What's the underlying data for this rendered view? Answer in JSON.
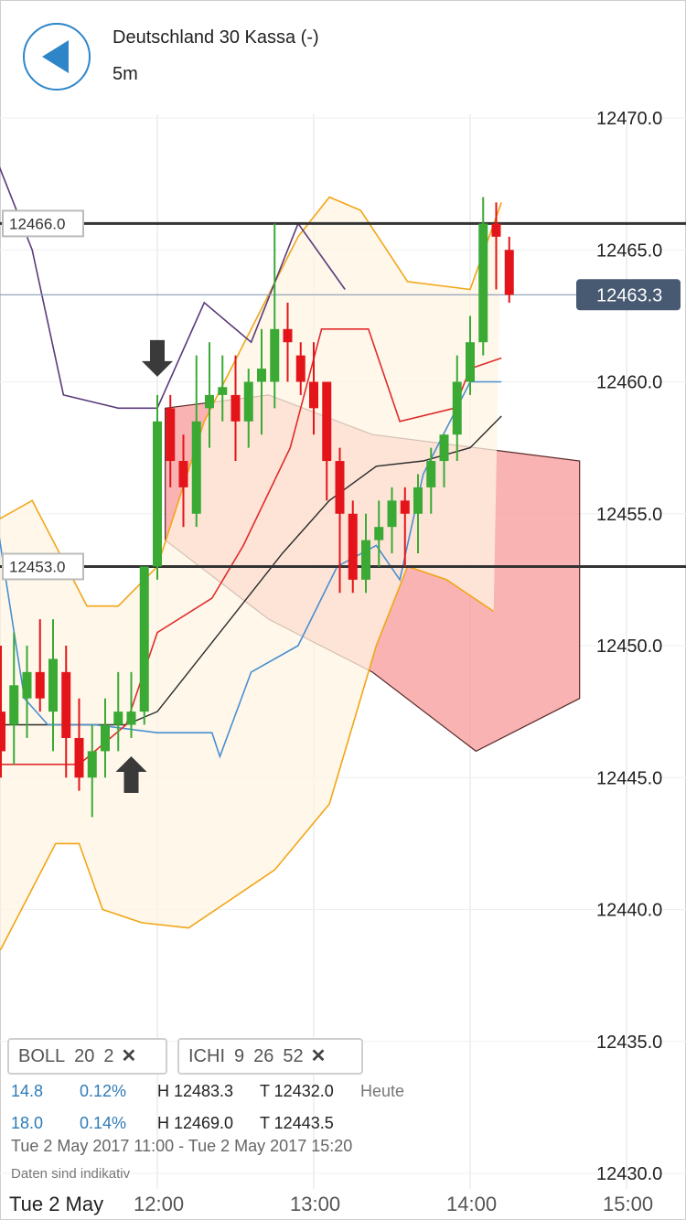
{
  "header": {
    "title": "Deutschland 30 Kassa (-)",
    "timeframe": "5m",
    "back_icon": "back-arrow-icon"
  },
  "colors": {
    "up_candle": "#3aaa35",
    "down_candle": "#e3151a",
    "boll_band": "#f2a516",
    "cloud_bear": "#f79a9a",
    "ichimoku_tenkan": "#4a8fd0",
    "ichimoku_kijun": "#e02b2b",
    "chikou": "#5a3a7a",
    "accent": "#2e86c9",
    "price_tag": "#475a72"
  },
  "chart_data": {
    "type": "candlestick",
    "title": "",
    "xlabel": "",
    "ylabel": "",
    "ylim": [
      12429.5,
      12470.5
    ],
    "y_ticks": [
      "12430.0",
      "12435.0",
      "12440.0",
      "12445.0",
      "12450.0",
      "12455.0",
      "12460.0",
      "12465.0",
      "12470.0"
    ],
    "x_ticks": [
      {
        "label": "Tue 2 May",
        "time": "11:20"
      },
      {
        "label": "12:00",
        "time": "12:00"
      },
      {
        "label": "13:00",
        "time": "13:00"
      },
      {
        "label": "14:00",
        "time": "14:00"
      },
      {
        "label": "15:00",
        "time": "15:00"
      }
    ],
    "x_range": [
      "11:00",
      "15:20"
    ],
    "horizontal_levels": [
      {
        "label": "12466.0",
        "value": 12466.0
      },
      {
        "label": "12453.0",
        "value": 12453.0
      }
    ],
    "last_price": {
      "label": "12463.3",
      "value": 12463.3
    },
    "candles": [
      {
        "time": "11:00",
        "o": 12447.5,
        "h": 12450.0,
        "l": 12445.0,
        "c": 12446.0
      },
      {
        "time": "11:05",
        "o": 12447.0,
        "h": 12450.5,
        "l": 12445.5,
        "c": 12448.5
      },
      {
        "time": "11:10",
        "o": 12448.0,
        "h": 12450.0,
        "l": 12446.5,
        "c": 12449.0
      },
      {
        "time": "11:15",
        "o": 12449.0,
        "h": 12451.0,
        "l": 12447.5,
        "c": 12448.0
      },
      {
        "time": "11:20",
        "o": 12447.5,
        "h": 12451.0,
        "l": 12446.0,
        "c": 12449.5
      },
      {
        "time": "11:25",
        "o": 12449.0,
        "h": 12450.0,
        "l": 12445.0,
        "c": 12446.5
      },
      {
        "time": "11:30",
        "o": 12446.5,
        "h": 12448.0,
        "l": 12444.5,
        "c": 12445.0
      },
      {
        "time": "11:35",
        "o": 12445.0,
        "h": 12447.0,
        "l": 12443.5,
        "c": 12446.0
      },
      {
        "time": "11:40",
        "o": 12446.0,
        "h": 12448.0,
        "l": 12445.0,
        "c": 12447.0
      },
      {
        "time": "11:45",
        "o": 12447.0,
        "h": 12449.0,
        "l": 12446.0,
        "c": 12447.5
      },
      {
        "time": "11:50",
        "o": 12447.0,
        "h": 12449.0,
        "l": 12446.5,
        "c": 12447.5
      },
      {
        "time": "11:55",
        "o": 12447.5,
        "h": 12453.0,
        "l": 12447.0,
        "c": 12453.0
      },
      {
        "time": "12:00",
        "o": 12453.0,
        "h": 12459.5,
        "l": 12452.5,
        "c": 12458.5
      },
      {
        "time": "12:05",
        "o": 12459.0,
        "h": 12459.5,
        "l": 12456.0,
        "c": 12457.0
      },
      {
        "time": "12:10",
        "o": 12457.0,
        "h": 12458.0,
        "l": 12454.5,
        "c": 12456.0
      },
      {
        "time": "12:15",
        "o": 12455.0,
        "h": 12461.0,
        "l": 12454.5,
        "c": 12458.5
      },
      {
        "time": "12:20",
        "o": 12459.0,
        "h": 12461.5,
        "l": 12457.5,
        "c": 12459.5
      },
      {
        "time": "12:25",
        "o": 12459.5,
        "h": 12461.0,
        "l": 12458.5,
        "c": 12459.8
      },
      {
        "time": "12:30",
        "o": 12459.5,
        "h": 12461.0,
        "l": 12457.0,
        "c": 12458.5
      },
      {
        "time": "12:35",
        "o": 12458.5,
        "h": 12460.5,
        "l": 12457.5,
        "c": 12460.0
      },
      {
        "time": "12:40",
        "o": 12460.0,
        "h": 12462.0,
        "l": 12458.0,
        "c": 12460.5
      },
      {
        "time": "12:45",
        "o": 12460.0,
        "h": 12466.0,
        "l": 12459.0,
        "c": 12462.0
      },
      {
        "time": "12:50",
        "o": 12462.0,
        "h": 12463.0,
        "l": 12460.0,
        "c": 12461.5
      },
      {
        "time": "12:55",
        "o": 12461.0,
        "h": 12461.5,
        "l": 12459.5,
        "c": 12460.0
      },
      {
        "time": "13:00",
        "o": 12460.0,
        "h": 12461.5,
        "l": 12458.0,
        "c": 12459.0
      },
      {
        "time": "13:05",
        "o": 12460.0,
        "h": 12460.0,
        "l": 12455.5,
        "c": 12457.0
      },
      {
        "time": "13:10",
        "o": 12457.0,
        "h": 12457.5,
        "l": 12452.0,
        "c": 12455.0
      },
      {
        "time": "13:15",
        "o": 12455.0,
        "h": 12455.5,
        "l": 12452.0,
        "c": 12452.5
      },
      {
        "time": "13:20",
        "o": 12452.5,
        "h": 12455.0,
        "l": 12452.0,
        "c": 12454.0
      },
      {
        "time": "13:25",
        "o": 12454.0,
        "h": 12455.5,
        "l": 12453.0,
        "c": 12454.5
      },
      {
        "time": "13:30",
        "o": 12454.5,
        "h": 12456.0,
        "l": 12453.5,
        "c": 12455.5
      },
      {
        "time": "13:35",
        "o": 12455.5,
        "h": 12456.0,
        "l": 12453.0,
        "c": 12455.0
      },
      {
        "time": "13:40",
        "o": 12455.0,
        "h": 12456.5,
        "l": 12453.5,
        "c": 12456.0
      },
      {
        "time": "13:45",
        "o": 12456.0,
        "h": 12457.5,
        "l": 12455.0,
        "c": 12457.0
      },
      {
        "time": "13:50",
        "o": 12457.0,
        "h": 12458.0,
        "l": 12456.0,
        "c": 12458.0
      },
      {
        "time": "13:55",
        "o": 12458.0,
        "h": 12461.0,
        "l": 12457.0,
        "c": 12460.0
      },
      {
        "time": "14:00",
        "o": 12460.0,
        "h": 12462.5,
        "l": 12459.5,
        "c": 12461.5
      },
      {
        "time": "14:05",
        "o": 12461.5,
        "h": 12467.0,
        "l": 12461.0,
        "c": 12466.0
      },
      {
        "time": "14:10",
        "o": 12466.0,
        "h": 12466.8,
        "l": 12463.5,
        "c": 12465.5
      },
      {
        "time": "14:15",
        "o": 12465.0,
        "h": 12465.5,
        "l": 12463.0,
        "c": 12463.3
      }
    ],
    "signals": [
      {
        "type": "buy",
        "time": "11:50"
      },
      {
        "type": "sell",
        "time": "12:00"
      }
    ],
    "bollinger": {
      "upper": [
        [
          10.5,
          12454.5
        ],
        [
          10.9,
          12454.5
        ],
        [
          11.2,
          12455.5
        ],
        [
          11.55,
          12451.5
        ],
        [
          11.75,
          12451.5
        ],
        [
          12.0,
          12453.0
        ],
        [
          12.3,
          12458.5
        ],
        [
          12.6,
          12462.0
        ],
        [
          12.9,
          12465.5
        ],
        [
          13.1,
          12467.0
        ],
        [
          13.3,
          12466.5
        ],
        [
          13.6,
          12463.8
        ],
        [
          14.0,
          12463.5
        ],
        [
          14.2,
          12466.8
        ]
      ],
      "lower": [
        [
          10.5,
          12438.5
        ],
        [
          11.0,
          12438.5
        ],
        [
          11.35,
          12442.5
        ],
        [
          11.5,
          12442.5
        ],
        [
          11.65,
          12440.0
        ],
        [
          11.9,
          12439.5
        ],
        [
          12.2,
          12439.3
        ],
        [
          12.5,
          12440.5
        ],
        [
          12.75,
          12441.5
        ],
        [
          13.1,
          12444.0
        ],
        [
          13.4,
          12450.0
        ],
        [
          13.6,
          12453.0
        ],
        [
          13.85,
          12452.5
        ],
        [
          14.15,
          12451.3
        ]
      ],
      "middle": [
        [
          10.5,
          12447.0
        ],
        [
          11.0,
          12447.0
        ],
        [
          11.3,
          12447.0
        ],
        [
          11.55,
          12447.0
        ],
        [
          11.8,
          12447.0
        ],
        [
          12.0,
          12447.5
        ],
        [
          12.4,
          12450.5
        ],
        [
          12.8,
          12453.5
        ],
        [
          13.1,
          12455.5
        ],
        [
          13.4,
          12456.8
        ],
        [
          13.7,
          12457.0
        ],
        [
          14.0,
          12457.5
        ],
        [
          14.2,
          12458.7
        ]
      ]
    },
    "ichimoku": {
      "tenkan": [
        [
          10.5,
          12457.5
        ],
        [
          10.9,
          12457.5
        ],
        [
          11.15,
          12448.0
        ],
        [
          11.3,
          12447.0
        ],
        [
          11.6,
          12447.0
        ],
        [
          12.0,
          12446.7
        ],
        [
          12.35,
          12446.7
        ],
        [
          12.4,
          12445.8
        ],
        [
          12.6,
          12449.0
        ],
        [
          12.9,
          12450.0
        ],
        [
          13.15,
          12453.0
        ],
        [
          13.4,
          12453.8
        ],
        [
          13.55,
          12452.5
        ],
        [
          13.7,
          12456.5
        ],
        [
          14.0,
          12460.0
        ],
        [
          14.2,
          12460.0
        ]
      ],
      "kijun": [
        [
          10.5,
          12445.5
        ],
        [
          10.8,
          12445.5
        ],
        [
          11.1,
          12445.5
        ],
        [
          11.5,
          12445.5
        ],
        [
          11.8,
          12447.0
        ],
        [
          12.0,
          12450.5
        ],
        [
          12.35,
          12451.8
        ],
        [
          12.55,
          12453.8
        ],
        [
          12.85,
          12457.5
        ],
        [
          13.05,
          12462.0
        ],
        [
          13.35,
          12462.0
        ],
        [
          13.55,
          12458.5
        ],
        [
          13.9,
          12459.0
        ],
        [
          14.0,
          12460.5
        ],
        [
          14.2,
          12460.9
        ]
      ],
      "chikou": [
        [
          10.5,
          12460.0
        ],
        [
          10.7,
          12463.5
        ],
        [
          10.9,
          12469.5
        ],
        [
          11.2,
          12465.0
        ],
        [
          11.4,
          12459.5
        ],
        [
          11.75,
          12459.0
        ],
        [
          12.0,
          12459.0
        ],
        [
          12.3,
          12463.0
        ],
        [
          12.6,
          12461.5
        ],
        [
          12.9,
          12466.0
        ],
        [
          13.2,
          12463.5
        ]
      ],
      "senkou_a": [
        12459.0,
        12459.5,
        12458.0,
        12457.5,
        12457.0
      ],
      "senkou_b": [
        12454.0,
        12451.0,
        12449.0,
        12446.0,
        12448.0
      ]
    }
  },
  "legend": {
    "chips": [
      {
        "name": "BOLL",
        "params": [
          "20",
          "2"
        ],
        "close_icon": "close-icon"
      },
      {
        "name": "ICHI",
        "params": [
          "9",
          "26",
          "52"
        ],
        "close_icon": "close-icon"
      }
    ],
    "rows": [
      {
        "change": "14.8",
        "pct": "0.12%",
        "high": "H 12483.3",
        "low": "T 12432.0",
        "tag": "Heute"
      },
      {
        "change": "18.0",
        "pct": "0.14%",
        "high": "H 12469.0",
        "low": "T 12443.5",
        "tag": ""
      }
    ],
    "range": "Tue 2 May 2017 11:00 - Tue 2 May 2017 15:20",
    "disclaimer": "Daten sind indikativ"
  }
}
